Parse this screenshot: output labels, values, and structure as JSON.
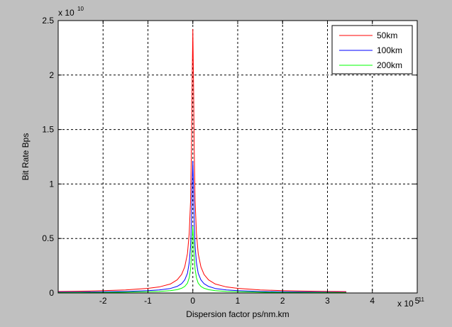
{
  "chart_data": {
    "type": "line",
    "title": "",
    "xlabel": "Dispersion factor ps/nm.km",
    "ylabel": "Bit Rate Bps",
    "x_exponent_label": "x 10",
    "x_exponent": "-11",
    "y_exponent_label": "x 10",
    "y_exponent": "10",
    "xlim": [
      -3.0,
      5.0
    ],
    "ylim": [
      0,
      2.5
    ],
    "xticks": [
      -2,
      -1,
      0,
      1,
      2,
      3,
      4,
      5
    ],
    "yticks": [
      0,
      0.5,
      1,
      1.5,
      2,
      2.5
    ],
    "xtick_labels": [
      "-2",
      "-1",
      "0",
      "1",
      "2",
      "3",
      "4",
      "5"
    ],
    "ytick_labels": [
      "0",
      "0.5",
      "1",
      "1.5",
      "2",
      "2.5"
    ],
    "grid": true,
    "legend_position": "top-right",
    "series": [
      {
        "name": "50km",
        "color": "#ff0000",
        "points": [
          [
            -3.0,
            0.013
          ],
          [
            -2.5,
            0.016
          ],
          [
            -2.0,
            0.021
          ],
          [
            -1.5,
            0.028
          ],
          [
            -1.0,
            0.042
          ],
          [
            -0.75,
            0.055
          ],
          [
            -0.5,
            0.082
          ],
          [
            -0.35,
            0.12
          ],
          [
            -0.25,
            0.17
          ],
          [
            -0.18,
            0.24
          ],
          [
            -0.12,
            0.36
          ],
          [
            -0.08,
            0.55
          ],
          [
            -0.05,
            0.85
          ],
          [
            -0.03,
            1.35
          ],
          [
            -0.015,
            1.95
          ],
          [
            0.0,
            2.42
          ],
          [
            0.015,
            1.95
          ],
          [
            0.03,
            1.35
          ],
          [
            0.05,
            0.85
          ],
          [
            0.08,
            0.55
          ],
          [
            0.12,
            0.36
          ],
          [
            0.18,
            0.24
          ],
          [
            0.25,
            0.17
          ],
          [
            0.35,
            0.12
          ],
          [
            0.5,
            0.082
          ],
          [
            0.75,
            0.055
          ],
          [
            1.0,
            0.042
          ],
          [
            1.5,
            0.028
          ],
          [
            2.0,
            0.021
          ],
          [
            2.5,
            0.017
          ],
          [
            3.0,
            0.014
          ],
          [
            3.42,
            0.012
          ]
        ]
      },
      {
        "name": "100km",
        "color": "#0000ff",
        "points": [
          [
            -3.0,
            0.007
          ],
          [
            -2.5,
            0.008
          ],
          [
            -2.0,
            0.011
          ],
          [
            -1.5,
            0.014
          ],
          [
            -1.0,
            0.021
          ],
          [
            -0.75,
            0.028
          ],
          [
            -0.5,
            0.041
          ],
          [
            -0.35,
            0.06
          ],
          [
            -0.25,
            0.085
          ],
          [
            -0.18,
            0.12
          ],
          [
            -0.12,
            0.18
          ],
          [
            -0.08,
            0.28
          ],
          [
            -0.05,
            0.43
          ],
          [
            -0.03,
            0.68
          ],
          [
            -0.015,
            0.98
          ],
          [
            0.0,
            1.21
          ],
          [
            0.015,
            0.98
          ],
          [
            0.03,
            0.68
          ],
          [
            0.05,
            0.43
          ],
          [
            0.08,
            0.28
          ],
          [
            0.12,
            0.18
          ],
          [
            0.18,
            0.12
          ],
          [
            0.25,
            0.085
          ],
          [
            0.35,
            0.06
          ],
          [
            0.5,
            0.041
          ],
          [
            0.75,
            0.028
          ],
          [
            1.0,
            0.021
          ],
          [
            1.5,
            0.014
          ],
          [
            2.0,
            0.011
          ],
          [
            2.5,
            0.009
          ],
          [
            3.0,
            0.007
          ],
          [
            3.42,
            0.006
          ]
        ]
      },
      {
        "name": "200km",
        "color": "#00ff00",
        "points": [
          [
            -3.0,
            0.003
          ],
          [
            -2.5,
            0.004
          ],
          [
            -2.0,
            0.005
          ],
          [
            -1.5,
            0.007
          ],
          [
            -1.0,
            0.011
          ],
          [
            -0.75,
            0.014
          ],
          [
            -0.5,
            0.021
          ],
          [
            -0.35,
            0.03
          ],
          [
            -0.25,
            0.043
          ],
          [
            -0.18,
            0.06
          ],
          [
            -0.12,
            0.09
          ],
          [
            -0.08,
            0.14
          ],
          [
            -0.05,
            0.22
          ],
          [
            -0.03,
            0.34
          ],
          [
            -0.015,
            0.49
          ],
          [
            0.0,
            0.61
          ],
          [
            0.015,
            0.49
          ],
          [
            0.03,
            0.34
          ],
          [
            0.05,
            0.22
          ],
          [
            0.08,
            0.14
          ],
          [
            0.12,
            0.09
          ],
          [
            0.18,
            0.06
          ],
          [
            0.25,
            0.043
          ],
          [
            0.35,
            0.03
          ],
          [
            0.5,
            0.021
          ],
          [
            0.75,
            0.014
          ],
          [
            1.0,
            0.011
          ],
          [
            1.5,
            0.007
          ],
          [
            2.0,
            0.005
          ],
          [
            2.5,
            0.004
          ],
          [
            3.0,
            0.004
          ],
          [
            3.42,
            0.003
          ]
        ]
      }
    ]
  }
}
